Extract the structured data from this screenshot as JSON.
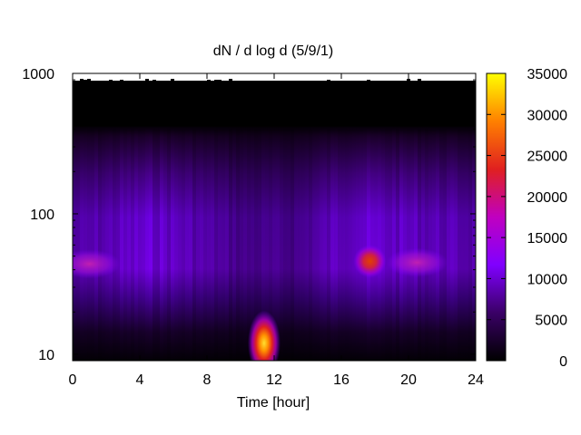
{
  "chart_data": {
    "type": "heatmap",
    "title": "dN / d log d (5/9/1)",
    "xlabel": "Time [hour]",
    "ylabel": "",
    "xlim": [
      0,
      24
    ],
    "ylim": [
      9,
      1000
    ],
    "y_scale": "log",
    "x_ticks": [
      "0",
      "4",
      "8",
      "12",
      "16",
      "20",
      "24"
    ],
    "y_ticks": [
      "10",
      "100",
      "1000"
    ],
    "colorbar": {
      "range": [
        0,
        35000
      ],
      "ticks": [
        "0",
        "5000",
        "10000",
        "15000",
        "20000",
        "25000",
        "30000",
        "35000"
      ],
      "palette": [
        "#000000",
        "#3a0066",
        "#8000ff",
        "#c000c0",
        "#e02020",
        "#ff8000",
        "#ffff00"
      ]
    },
    "features": [
      {
        "label": "peak",
        "x": 11.4,
        "y": 12,
        "value": 30000
      },
      {
        "label": "peak",
        "x": 17.7,
        "y": 46,
        "value": 20000
      },
      {
        "label": "band",
        "x": 1.0,
        "y": 44,
        "value": 13000
      },
      {
        "label": "band",
        "x": 20.5,
        "y": 45,
        "value": 12000
      }
    ],
    "grid": false
  }
}
